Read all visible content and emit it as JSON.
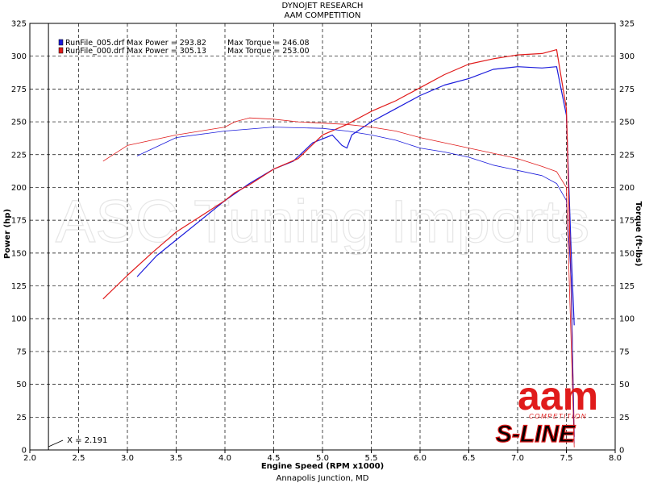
{
  "header": {
    "line1": "DYNOJET RESEARCH",
    "line2": "AAM COMPETITION"
  },
  "footer": "Annapolis Junction, MD",
  "watermark": "ASC Tuning Imports",
  "logo": {
    "brand": "aam",
    "sub": "COMPETITION",
    "product": "S-LINE",
    "color": "#e01b1b"
  },
  "cursor_readout": "X = 2.191",
  "chart_data": {
    "type": "line",
    "xlabel": "Engine Speed (RPM x1000)",
    "ylabel_left": "Power (hp)",
    "ylabel_right": "Torque (ft-lbs)",
    "xlim": [
      2.0,
      8.0
    ],
    "ylim": [
      0,
      325
    ],
    "x_ticks": [
      "2.0",
      "2.5",
      "3.0",
      "3.5",
      "4.0",
      "4.5",
      "5.0",
      "5.5",
      "6.0",
      "6.5",
      "7.0",
      "7.5",
      "8.0"
    ],
    "y_ticks": [
      "0",
      "25",
      "50",
      "75",
      "100",
      "125",
      "150",
      "175",
      "200",
      "225",
      "250",
      "275",
      "300",
      "325"
    ],
    "grid": true,
    "cursor_x": 2.191,
    "legend": [
      {
        "text": "RunFile_005.drf Max Power = 293.82",
        "torque_text": "Max Torque = 246.08",
        "color": "#1a1adb"
      },
      {
        "text": "RunFile_000.drf Max Power = 305.13",
        "torque_text": "Max Torque = 253.00",
        "color": "#e01b1b"
      }
    ],
    "series": [
      {
        "name": "RunFile_005.drf",
        "kind": "power",
        "color": "#1a1adb",
        "x": [
          3.1,
          3.3,
          3.5,
          3.75,
          4.0,
          4.25,
          4.5,
          4.7,
          4.9,
          5.1,
          5.2,
          5.25,
          5.3,
          5.5,
          5.75,
          6.0,
          6.25,
          6.5,
          6.75,
          7.0,
          7.25,
          7.4,
          7.5,
          7.55,
          7.58
        ],
        "y": [
          132,
          148,
          160,
          175,
          190,
          203,
          214,
          220,
          234,
          240,
          232,
          230,
          240,
          250,
          260,
          270,
          278,
          283,
          290,
          292,
          291,
          292,
          255,
          150,
          95
        ]
      },
      {
        "name": "RunFile_000.drf",
        "kind": "power",
        "color": "#e01b1b",
        "x": [
          2.75,
          3.0,
          3.25,
          3.5,
          3.75,
          4.0,
          4.1,
          4.25,
          4.5,
          4.75,
          5.0,
          5.25,
          5.5,
          5.75,
          6.0,
          6.25,
          6.5,
          6.75,
          7.0,
          7.25,
          7.4,
          7.5,
          7.55,
          7.58
        ],
        "y": [
          115,
          133,
          150,
          166,
          178,
          190,
          196,
          202,
          214,
          222,
          240,
          248,
          258,
          266,
          276,
          286,
          294,
          298,
          301,
          302,
          305,
          260,
          120,
          10
        ]
      },
      {
        "name": "RunFile_005.drf",
        "kind": "torque",
        "color": "#1a1adb",
        "x": [
          3.1,
          3.5,
          4.0,
          4.5,
          5.0,
          5.25,
          5.5,
          5.75,
          6.0,
          6.25,
          6.5,
          6.75,
          7.0,
          7.25,
          7.4,
          7.5,
          7.55,
          7.58
        ],
        "y": [
          224,
          238,
          243,
          246,
          245,
          243,
          240,
          236,
          230,
          227,
          223,
          217,
          213,
          209,
          203,
          190,
          130,
          5
        ]
      },
      {
        "name": "RunFile_000.drf",
        "kind": "torque",
        "color": "#e01b1b",
        "x": [
          2.75,
          3.0,
          3.5,
          4.0,
          4.1,
          4.25,
          4.5,
          4.75,
          5.0,
          5.25,
          5.5,
          5.75,
          6.0,
          6.25,
          6.5,
          6.75,
          7.0,
          7.25,
          7.4,
          7.5,
          7.55,
          7.58
        ],
        "y": [
          220,
          232,
          240,
          246,
          250,
          253,
          252,
          250,
          249,
          248,
          246,
          243,
          238,
          234,
          230,
          226,
          222,
          216,
          212,
          200,
          80,
          2
        ]
      }
    ]
  }
}
